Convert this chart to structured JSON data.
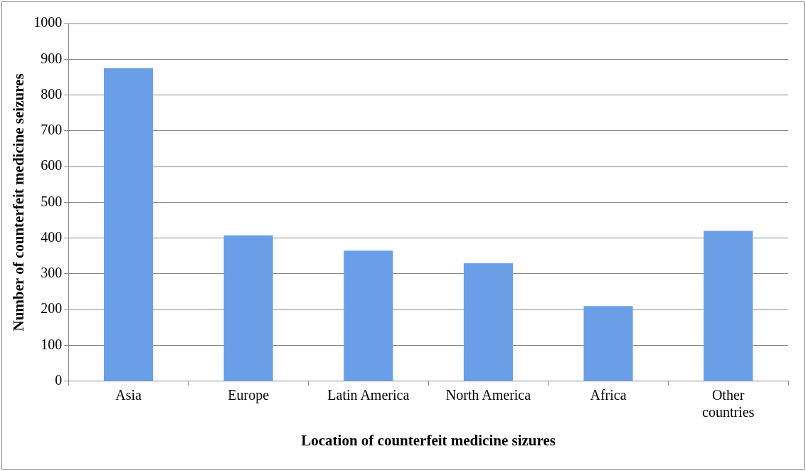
{
  "chart_data": {
    "type": "bar",
    "xlabel": "Location of counterfeit medicine sizures",
    "ylabel": "Number of counterfeit medicine seizures",
    "categories": [
      "Asia",
      "Europe",
      "Latin America",
      "North America",
      "Africa",
      "Other countries"
    ],
    "values": [
      875,
      408,
      365,
      330,
      210,
      420
    ],
    "color": "#6a9fe8",
    "ylim": [
      0,
      1000
    ],
    "yticks": [
      0,
      100,
      200,
      300,
      400,
      500,
      600,
      700,
      800,
      900,
      1000
    ],
    "grid": "y",
    "legend": false
  }
}
